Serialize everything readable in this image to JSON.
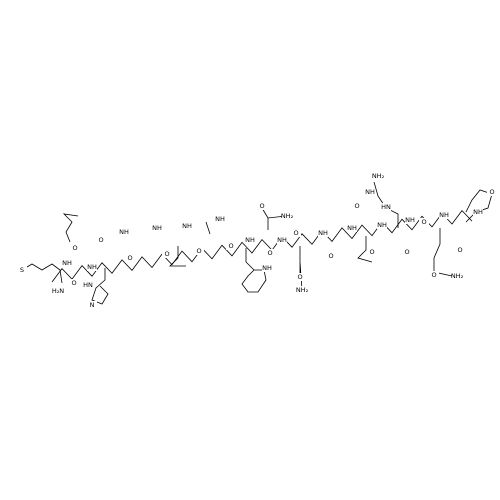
{
  "atoms": [
    "S",
    "H₂N",
    "O",
    "NH",
    "O",
    "NH",
    "HN",
    "N",
    "O",
    "NH",
    "O",
    "NH",
    "O",
    "NH",
    "O",
    "NH",
    "O",
    "NH",
    "O",
    "NH₂",
    "NH",
    "O",
    "O",
    "NH",
    "NH₂",
    "O",
    "NH",
    "O",
    "NH",
    "O",
    "NH",
    "O",
    "NH₂",
    "NH",
    "HN",
    "NH",
    "O",
    "O",
    "NH",
    "O",
    "NH₂",
    "O",
    "NH",
    "O"
  ]
}
